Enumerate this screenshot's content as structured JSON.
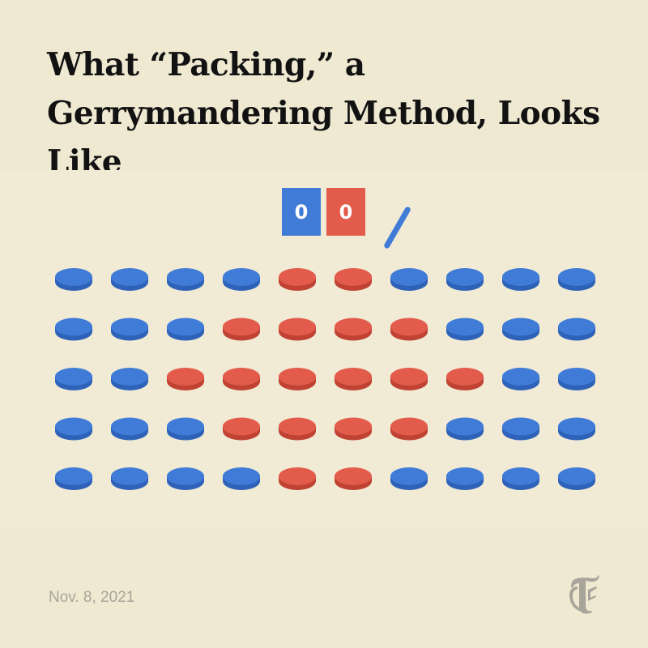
{
  "title": "What “Packing,” a Gerrymandering Method, Looks Like",
  "scoreboard": {
    "blue_seats": "0",
    "red_seats": "0",
    "blue_color": "#3f7bd7",
    "red_color": "#e25b4b"
  },
  "divider_icon": "slash-line",
  "voter_grid": {
    "rows": [
      [
        "blue",
        "blue",
        "blue",
        "blue",
        "red",
        "red",
        "blue",
        "blue",
        "blue",
        "blue"
      ],
      [
        "blue",
        "blue",
        "blue",
        "red",
        "red",
        "red",
        "red",
        "blue",
        "blue",
        "blue"
      ],
      [
        "blue",
        "blue",
        "red",
        "red",
        "red",
        "red",
        "red",
        "red",
        "blue",
        "blue"
      ],
      [
        "blue",
        "blue",
        "blue",
        "red",
        "red",
        "red",
        "red",
        "blue",
        "blue",
        "blue"
      ],
      [
        "blue",
        "blue",
        "blue",
        "blue",
        "red",
        "red",
        "blue",
        "blue",
        "blue",
        "blue"
      ]
    ],
    "colors": {
      "blue": {
        "top": "#3f7bd7",
        "side": "#2d62b8"
      },
      "red": {
        "top": "#e25b4b",
        "side": "#bf4233"
      }
    }
  },
  "date": "Nov. 8, 2021",
  "logo_icon": "nyt-t-logo",
  "background_color": "#efe9d2"
}
